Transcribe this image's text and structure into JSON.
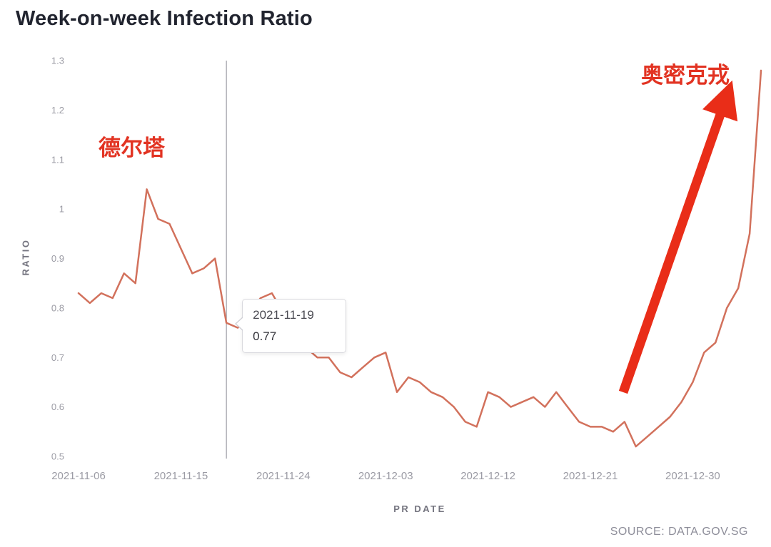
{
  "page": {
    "title": "Week-on-week Infection Ratio",
    "source": "SOURCE: DATA.GOV.SG"
  },
  "annotations": {
    "delta": "德尔塔",
    "omicron": "奥密克戎"
  },
  "colors": {
    "series_line": "#d2715c",
    "annotation_red": "#e23322",
    "arrow_red": "#e92d18",
    "crosshair": "#8c8c95",
    "title_text": "#21242f",
    "tick_text": "#9b9ba4"
  },
  "chart_data": {
    "type": "line",
    "title": "Week-on-week Infection Ratio",
    "xlabel": "PR DATE",
    "ylabel": "RATIO",
    "ylim": [
      0.5,
      1.3
    ],
    "grid": false,
    "legend": "none",
    "yticks": [
      "0.5",
      "0.6",
      "0.7",
      "0.8",
      "0.9",
      "1",
      "1.1",
      "1.2",
      "1.3"
    ],
    "xticks": [
      "2021-11-06",
      "2021-11-15",
      "2021-11-24",
      "2021-12-03",
      "2021-12-12",
      "2021-12-21",
      "2021-12-30"
    ],
    "dates": [
      "2021-11-06",
      "2021-11-07",
      "2021-11-08",
      "2021-11-09",
      "2021-11-10",
      "2021-11-11",
      "2021-11-12",
      "2021-11-13",
      "2021-11-14",
      "2021-11-15",
      "2021-11-16",
      "2021-11-17",
      "2021-11-18",
      "2021-11-19",
      "2021-11-20",
      "2021-11-21",
      "2021-11-22",
      "2021-11-23",
      "2021-11-24",
      "2021-11-25",
      "2021-11-26",
      "2021-11-27",
      "2021-11-28",
      "2021-11-29",
      "2021-11-30",
      "2021-12-01",
      "2021-12-02",
      "2021-12-03",
      "2021-12-04",
      "2021-12-05",
      "2021-12-06",
      "2021-12-07",
      "2021-12-08",
      "2021-12-09",
      "2021-12-10",
      "2021-12-11",
      "2021-12-12",
      "2021-12-13",
      "2021-12-14",
      "2021-12-15",
      "2021-12-16",
      "2021-12-17",
      "2021-12-18",
      "2021-12-19",
      "2021-12-20",
      "2021-12-21",
      "2021-12-22",
      "2021-12-23",
      "2021-12-24",
      "2021-12-25",
      "2021-12-26",
      "2021-12-27",
      "2021-12-28",
      "2021-12-29",
      "2021-12-30",
      "2021-12-31",
      "2022-01-01",
      "2022-01-02",
      "2022-01-03",
      "2022-01-04",
      "2022-01-05"
    ],
    "values": [
      0.83,
      0.81,
      0.83,
      0.82,
      0.87,
      0.85,
      1.04,
      0.98,
      0.97,
      0.92,
      0.87,
      0.88,
      0.9,
      0.77,
      0.76,
      0.79,
      0.82,
      0.83,
      0.79,
      0.75,
      0.72,
      0.7,
      0.7,
      0.67,
      0.66,
      0.68,
      0.7,
      0.71,
      0.63,
      0.66,
      0.65,
      0.63,
      0.62,
      0.6,
      0.57,
      0.56,
      0.63,
      0.62,
      0.6,
      0.61,
      0.62,
      0.6,
      0.63,
      0.6,
      0.57,
      0.56,
      0.56,
      0.55,
      0.57,
      0.52,
      0.54,
      0.56,
      0.58,
      0.61,
      0.65,
      0.71,
      0.73,
      0.8,
      0.84,
      0.95,
      1.28
    ],
    "tooltip": {
      "date": "2021-11-19",
      "value": "0.77"
    }
  }
}
